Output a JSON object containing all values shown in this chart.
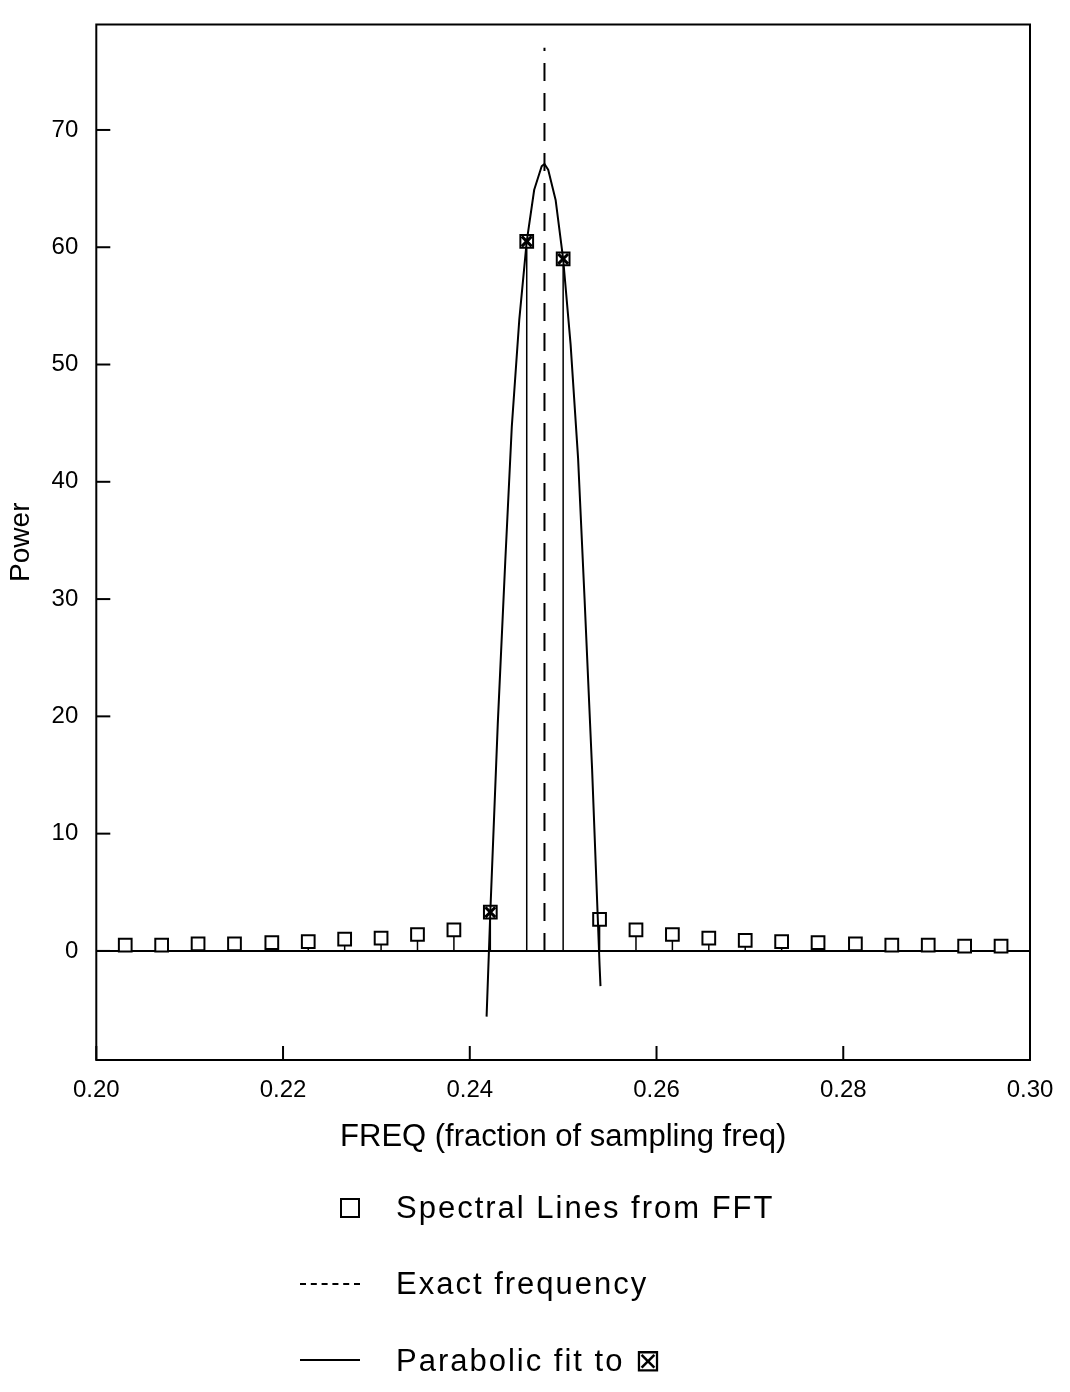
{
  "chart_data": {
    "type": "scatter",
    "xlabel": "FREQ (fraction of sampling freq)",
    "ylabel": "Power",
    "xlim": [
      0.2,
      0.3
    ],
    "xticks": [
      {
        "value": 0.2,
        "label": "0.20"
      },
      {
        "value": 0.22,
        "label": "0.22"
      },
      {
        "value": 0.24,
        "label": "0.24"
      },
      {
        "value": 0.26,
        "label": "0.26"
      },
      {
        "value": 0.28,
        "label": "0.28"
      },
      {
        "value": 0.3,
        "label": "0.30"
      }
    ],
    "ylim": [
      -9.3,
      79
    ],
    "yticks": [
      0,
      10,
      20,
      30,
      40,
      50,
      60,
      70
    ],
    "legend": "bottom",
    "series": [
      {
        "name": "Spectral Lines from FFT",
        "type": "lollipop",
        "marker": "square",
        "color": "#000000",
        "x": [
          0.2031,
          0.207,
          0.2109,
          0.2148,
          0.2188,
          0.2227,
          0.2266,
          0.2305,
          0.2344,
          0.2383,
          0.2422,
          0.2461,
          0.25,
          0.2539,
          0.2578,
          0.2617,
          0.2656,
          0.2695,
          0.2734,
          0.2773,
          0.2813,
          0.2852,
          0.2891,
          0.293,
          0.2969
        ],
        "values": [
          0.5,
          0.5,
          0.6,
          0.6,
          0.7,
          0.8,
          1,
          1.1,
          1.4,
          1.8,
          3.3,
          60.5,
          59,
          2.7,
          1.8,
          1.4,
          1.1,
          0.9,
          0.8,
          0.7,
          0.6,
          0.5,
          0.5,
          0.4,
          0.4
        ]
      },
      {
        "type": "scatter",
        "marker": "cross",
        "color": "#000000",
        "x": [
          0.2422,
          0.2461,
          0.25
        ],
        "values": [
          3.3,
          60.5,
          59
        ]
      },
      {
        "name": "Exact frequency",
        "type": "line",
        "line_style": "dashed",
        "marker": "none",
        "color": "#000000",
        "x": [
          0.248,
          0.248
        ],
        "values": [
          0,
          77
        ]
      },
      {
        "name": "Parabolic fit to ⊠",
        "type": "line",
        "line_style": "solid",
        "marker": "none",
        "color": "#000000",
        "x": [
          0.2418,
          0.2422,
          0.243,
          0.2438,
          0.2445,
          0.2453,
          0.2461,
          0.2469,
          0.2477,
          0.248,
          0.2484,
          0.2492,
          0.25,
          0.2508,
          0.2516,
          0.2523,
          0.2531,
          0.2539,
          0.254
        ],
        "values": [
          -5.6,
          3.3,
          19.4,
          33.2,
          44.7,
          53.8,
          60.5,
          64.9,
          66.9,
          67.1,
          66.6,
          64,
          59,
          51.7,
          42,
          29.9,
          15.5,
          -1.2,
          -3
        ]
      }
    ]
  }
}
